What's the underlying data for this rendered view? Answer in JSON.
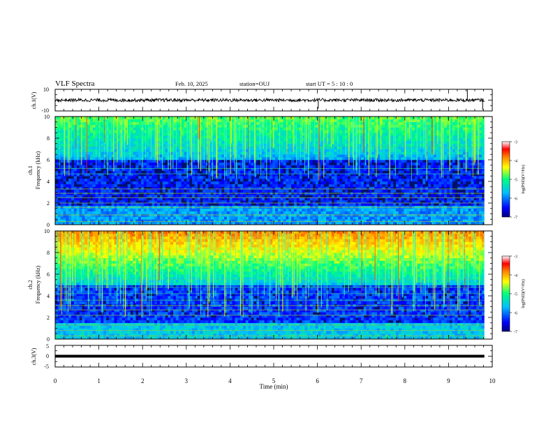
{
  "header": {
    "title": "VLF Spectra",
    "date": "Feb. 10, 2025",
    "station": "station=OUJ",
    "start": "start  UT =   5 : 10 : 0"
  },
  "chart_data": {
    "type": "heatmap",
    "x": {
      "label": "Time (min)",
      "range": [
        0,
        10
      ],
      "ticks": [
        "0",
        "1",
        "2",
        "3",
        "4",
        "5",
        "6",
        "7",
        "8",
        "9",
        "10"
      ]
    },
    "panels": [
      {
        "id": "ch1-waveform",
        "type": "line",
        "ylabel": "ch.1(V)",
        "ylim": [
          -10,
          10
        ],
        "yticks": [
          "10",
          "-10"
        ],
        "level": 0,
        "color": "#000000"
      },
      {
        "id": "ch1-spectrogram",
        "type": "heatmap",
        "title": "ch.1",
        "ylabel": "Frequency (kHz)",
        "ylim": [
          0,
          10
        ],
        "yticks": [
          "0",
          "2",
          "4",
          "6",
          "8",
          "10"
        ],
        "colorbar": {
          "label": "log(PSD)(V²/Hz)",
          "range": [
            -7,
            -3
          ],
          "ticks": [
            "-3",
            "-4",
            "-5",
            "-6",
            "-7"
          ]
        }
      },
      {
        "id": "ch2-spectrogram",
        "type": "heatmap",
        "title": "ch.2",
        "ylabel": "Frequency (kHz)",
        "ylim": [
          0,
          10
        ],
        "yticks": [
          "0",
          "2",
          "4",
          "6",
          "8",
          "10"
        ],
        "colorbar": {
          "label": "log(PSD)(V²/Hz)",
          "range": [
            -7,
            -3
          ],
          "ticks": [
            "-3",
            "-4",
            "-5",
            "-6",
            "-7"
          ]
        }
      },
      {
        "id": "ch3-waveform",
        "type": "line",
        "ylabel": "ch.3(V)",
        "ylim": [
          -5,
          5
        ],
        "yticks": [
          "5",
          "0",
          "-5"
        ],
        "level": 0,
        "color": "#000000"
      }
    ],
    "colormap": [
      "#00007f",
      "#0000ff",
      "#00bfff",
      "#00ff7f",
      "#ffff00",
      "#ff7f00",
      "#ff0000",
      "#7f0000"
    ],
    "data_end_min": 9.82,
    "grid": false,
    "legend": "colorbars at right"
  }
}
